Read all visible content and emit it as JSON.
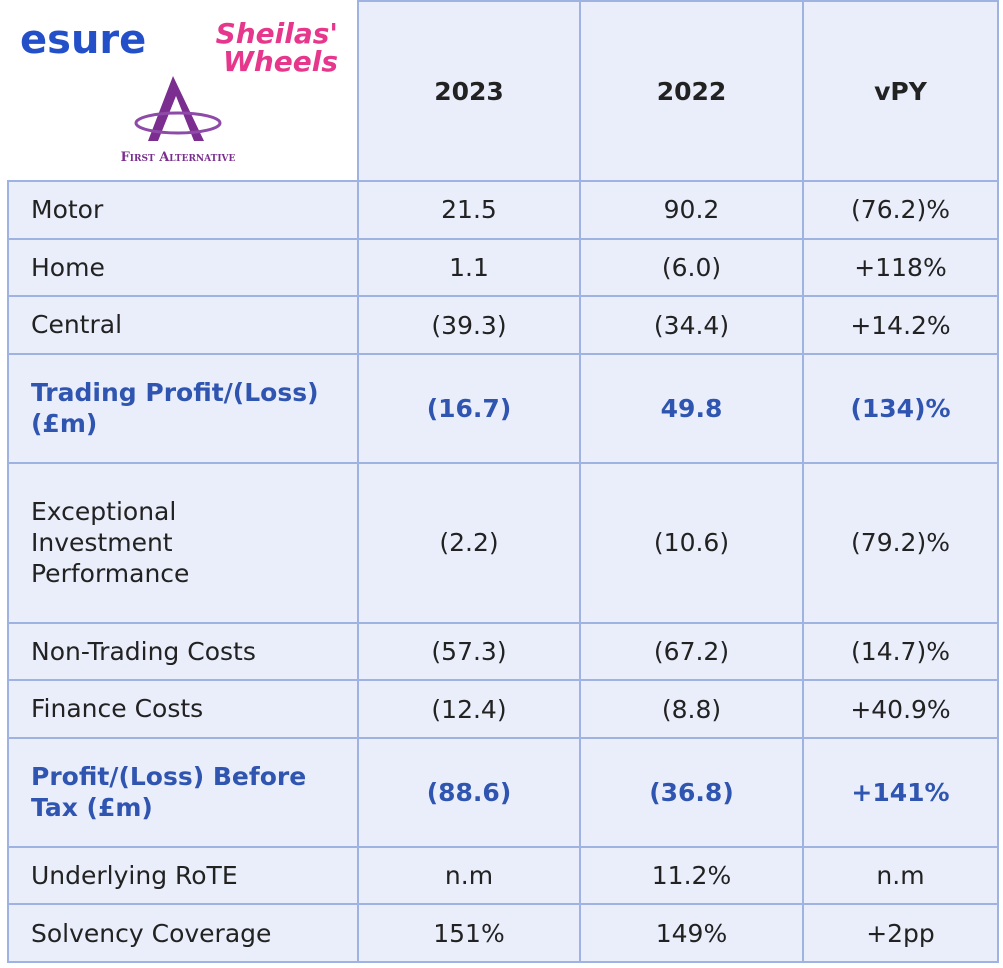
{
  "logo": {
    "brand": "esure",
    "name_line1": "Sheilas'",
    "name_line2": "Wheels",
    "caption": "First Alternative"
  },
  "table": {
    "columns": [
      "2023",
      "2022",
      "vPY"
    ],
    "rows": [
      {
        "label": "Motor",
        "values": [
          "21.5",
          "90.2",
          "(76.2)%"
        ]
      },
      {
        "label": "Home",
        "values": [
          "1.1",
          "(6.0)",
          "+118%"
        ]
      },
      {
        "label": "Central",
        "values": [
          "(39.3)",
          "(34.4)",
          "+14.2%"
        ]
      },
      {
        "label": "Trading Profit/(Loss)\n(£m)",
        "values": [
          "(16.7)",
          "49.8",
          "(134)%"
        ],
        "highlight": true
      },
      {
        "label": "Exceptional\nInvestment\nPerformance",
        "values": [
          "(2.2)",
          "(10.6)",
          "(79.2)%"
        ]
      },
      {
        "label": "Non-Trading Costs",
        "values": [
          "(57.3)",
          "(67.2)",
          "(14.7)%"
        ]
      },
      {
        "label": "Finance Costs",
        "values": [
          "(12.4)",
          "(8.8)",
          "+40.9%"
        ]
      },
      {
        "label": "Profit/(Loss) Before\nTax (£m)",
        "values": [
          "(88.6)",
          "(36.8)",
          "+141%"
        ],
        "highlight": true
      },
      {
        "label": "Underlying RoTE",
        "values": [
          "n.m",
          "11.2%",
          "n.m"
        ]
      },
      {
        "label": "Solvency Coverage",
        "values": [
          "151%",
          "149%",
          "+2pp"
        ]
      }
    ]
  }
}
